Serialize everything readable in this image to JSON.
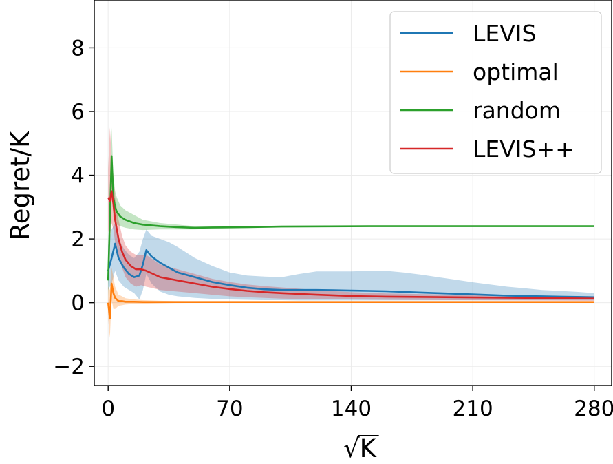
{
  "chart_data": {
    "type": "line",
    "title": "",
    "xlabel_radical": "√",
    "xlabel_var": "K",
    "ylabel": "Regret/K",
    "xlim": [
      -8,
      290
    ],
    "ylim": [
      -2.6,
      9.5
    ],
    "xticks": [
      0,
      70,
      140,
      210,
      280
    ],
    "xtick_labels": [
      "0",
      "70",
      "140",
      "210",
      "280"
    ],
    "yticks": [
      -2,
      0,
      2,
      4,
      6,
      8
    ],
    "ytick_labels": [
      "−2",
      "0",
      "2",
      "4",
      "6",
      "8"
    ],
    "grid": true,
    "legend_position": "top-right",
    "series": [
      {
        "name": "LEVIS",
        "color": "#1f77b4",
        "x": [
          0,
          2,
          4,
          6,
          9,
          12,
          15,
          18,
          20,
          22,
          25,
          30,
          35,
          40,
          50,
          60,
          70,
          80,
          90,
          100,
          110,
          120,
          130,
          140,
          150,
          160,
          170,
          180,
          190,
          200,
          210,
          220,
          230,
          240,
          250,
          260,
          270,
          280
        ],
        "values": [
          1.0,
          1.4,
          1.85,
          1.4,
          1.1,
          0.9,
          0.8,
          0.85,
          1.2,
          1.65,
          1.45,
          1.25,
          1.1,
          0.95,
          0.8,
          0.65,
          0.55,
          0.47,
          0.42,
          0.4,
          0.4,
          0.4,
          0.39,
          0.38,
          0.37,
          0.36,
          0.34,
          0.32,
          0.3,
          0.28,
          0.26,
          0.24,
          0.22,
          0.21,
          0.2,
          0.19,
          0.18,
          0.17
        ],
        "lower": [
          0.4,
          0.6,
          1.0,
          0.7,
          0.5,
          0.4,
          0.3,
          0.1,
          0.4,
          0.9,
          0.6,
          0.35,
          0.25,
          0.2,
          0.15,
          0.12,
          0.1,
          0.09,
          0.08,
          0.08,
          0.07,
          0.07,
          0.07,
          0.07,
          0.07,
          0.07,
          0.07,
          0.07,
          0.07,
          0.07,
          0.07,
          0.07,
          0.07,
          0.07,
          0.07,
          0.07,
          0.07,
          0.07
        ],
        "upper": [
          1.8,
          2.3,
          2.5,
          2.0,
          1.7,
          1.5,
          1.4,
          1.6,
          2.0,
          2.3,
          2.1,
          2.0,
          1.9,
          1.75,
          1.4,
          1.15,
          0.95,
          0.85,
          0.82,
          0.8,
          0.9,
          0.98,
          0.98,
          0.98,
          1.0,
          1.0,
          0.95,
          0.88,
          0.8,
          0.72,
          0.64,
          0.57,
          0.5,
          0.45,
          0.4,
          0.37,
          0.34,
          0.3
        ]
      },
      {
        "name": "optimal",
        "color": "#ff7f0e",
        "x": [
          0,
          1,
          2,
          3,
          4,
          6,
          8,
          10,
          15,
          20,
          30,
          40,
          60,
          100,
          150,
          200,
          280
        ],
        "values": [
          0.0,
          -0.5,
          0.6,
          0.3,
          0.15,
          0.05,
          0.05,
          0.03,
          0.03,
          0.02,
          0.02,
          0.02,
          0.02,
          0.02,
          0.02,
          0.02,
          0.02
        ],
        "lower": [
          -0.5,
          -1.1,
          0.1,
          -0.2,
          -0.2,
          -0.1,
          -0.08,
          -0.06,
          -0.04,
          -0.03,
          -0.02,
          -0.01,
          0.0,
          0.01,
          0.01,
          0.01,
          0.01
        ],
        "upper": [
          0.5,
          0.4,
          1.1,
          0.8,
          0.5,
          0.25,
          0.2,
          0.14,
          0.1,
          0.08,
          0.06,
          0.05,
          0.04,
          0.03,
          0.03,
          0.03,
          0.03
        ]
      },
      {
        "name": "random",
        "color": "#2ca02c",
        "x": [
          0,
          1,
          2,
          3,
          4,
          5,
          7,
          10,
          15,
          20,
          30,
          40,
          50,
          60,
          80,
          100,
          150,
          200,
          250,
          280
        ],
        "values": [
          0.7,
          2.6,
          4.6,
          3.3,
          3.0,
          2.85,
          2.7,
          2.6,
          2.5,
          2.45,
          2.4,
          2.37,
          2.35,
          2.36,
          2.37,
          2.39,
          2.4,
          2.4,
          2.4,
          2.4
        ],
        "lower": [
          0.2,
          1.9,
          3.6,
          2.7,
          2.5,
          2.45,
          2.4,
          2.35,
          2.3,
          2.28,
          2.3,
          2.3,
          2.3,
          2.32,
          2.34,
          2.36,
          2.38,
          2.38,
          2.39,
          2.39
        ],
        "upper": [
          1.2,
          3.5,
          5.5,
          4.0,
          3.5,
          3.3,
          3.05,
          2.9,
          2.75,
          2.6,
          2.5,
          2.45,
          2.4,
          2.4,
          2.4,
          2.42,
          2.42,
          2.42,
          2.41,
          2.41
        ]
      },
      {
        "name": "LEVIS++",
        "color": "#d62728",
        "x": [
          0,
          1,
          2,
          3,
          4,
          6,
          8,
          10,
          13,
          16,
          19,
          22,
          26,
          30,
          40,
          50,
          60,
          70,
          80,
          90,
          100,
          120,
          140,
          160,
          200,
          240,
          280
        ],
        "values": [
          3.3,
          3.2,
          3.5,
          3.1,
          2.6,
          2.0,
          1.6,
          1.35,
          1.15,
          1.05,
          1.05,
          1.0,
          0.9,
          0.8,
          0.7,
          0.6,
          0.5,
          0.43,
          0.37,
          0.33,
          0.3,
          0.25,
          0.21,
          0.19,
          0.17,
          0.15,
          0.13
        ],
        "lower": [
          2.3,
          2.0,
          2.5,
          2.3,
          1.9,
          1.4,
          1.1,
          0.8,
          0.6,
          0.5,
          0.55,
          0.5,
          0.45,
          0.4,
          0.35,
          0.3,
          0.25,
          0.2,
          0.17,
          0.15,
          0.13,
          0.11,
          0.1,
          0.09,
          0.08,
          0.07,
          0.06
        ],
        "upper": [
          4.2,
          5.5,
          4.6,
          4.0,
          3.3,
          2.6,
          2.1,
          1.8,
          1.6,
          1.5,
          1.5,
          1.5,
          1.35,
          1.2,
          1.05,
          0.9,
          0.75,
          0.65,
          0.57,
          0.52,
          0.48,
          0.4,
          0.33,
          0.29,
          0.25,
          0.22,
          0.2
        ]
      }
    ]
  }
}
